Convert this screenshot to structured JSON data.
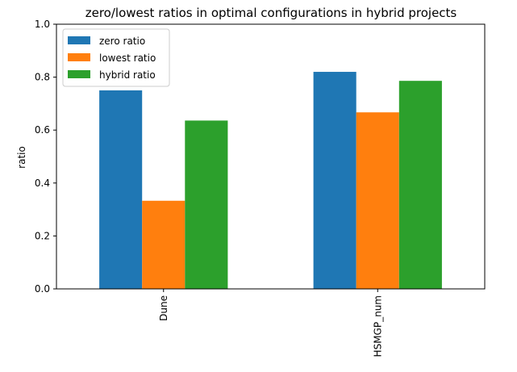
{
  "chart_data": {
    "type": "bar",
    "title": "zero/lowest ratios in optimal configurations in hybrid projects",
    "xlabel": "",
    "ylabel": "ratio",
    "ylim": [
      0,
      1.0
    ],
    "yticks": [
      "0.0",
      "0.2",
      "0.4",
      "0.6",
      "0.8",
      "1.0"
    ],
    "categories": [
      "Dune",
      "HSMGP_num"
    ],
    "series": [
      {
        "name": "zero ratio",
        "values": [
          0.75,
          0.82
        ],
        "color": "#1f77b4"
      },
      {
        "name": "lowest ratio",
        "values": [
          0.333,
          0.667
        ],
        "color": "#ff7f0e"
      },
      {
        "name": "hybrid ratio",
        "values": [
          0.636,
          0.786
        ],
        "color": "#2ca02c"
      }
    ],
    "grid": false,
    "legend_position": "top-left"
  }
}
